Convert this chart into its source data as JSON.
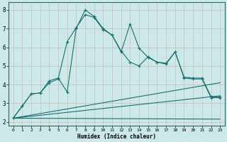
{
  "title": "",
  "xlabel": "Humidex (Indice chaleur)",
  "background_color": "#cce8e8",
  "grid_color": "#b0cccc",
  "line_color": "#1a7070",
  "xlim": [
    -0.5,
    23.5
  ],
  "ylim": [
    1.8,
    8.4
  ],
  "xticks": [
    0,
    1,
    2,
    3,
    4,
    5,
    6,
    7,
    8,
    9,
    10,
    11,
    12,
    13,
    14,
    15,
    16,
    17,
    18,
    19,
    20,
    21,
    22,
    23
  ],
  "yticks": [
    2,
    3,
    4,
    5,
    6,
    7,
    8
  ],
  "line1_x": [
    0,
    1,
    2,
    3,
    4,
    5,
    6,
    7,
    8,
    9,
    10,
    11,
    12,
    13,
    14,
    15,
    16,
    17,
    18,
    19,
    20,
    21,
    22,
    23
  ],
  "line1_y": [
    2.2,
    2.85,
    3.5,
    3.55,
    4.2,
    4.35,
    3.6,
    7.0,
    8.0,
    7.65,
    7.0,
    6.65,
    5.8,
    5.2,
    5.0,
    5.5,
    5.2,
    5.15,
    5.75,
    4.4,
    4.35,
    4.35,
    3.35,
    3.35
  ],
  "line2_x": [
    0,
    1,
    2,
    3,
    4,
    5,
    6,
    7,
    8,
    9,
    10,
    11,
    12,
    13,
    14,
    15,
    16,
    17,
    18,
    19,
    20,
    21,
    22,
    23
  ],
  "line2_y": [
    2.2,
    2.85,
    3.5,
    3.55,
    4.1,
    4.3,
    6.3,
    7.05,
    7.75,
    7.6,
    6.95,
    6.65,
    5.75,
    7.25,
    5.95,
    5.45,
    5.2,
    5.1,
    5.75,
    4.35,
    4.3,
    4.3,
    3.3,
    3.3
  ],
  "line3_x": [
    0,
    23
  ],
  "line3_y": [
    2.2,
    4.1
  ],
  "line4_x": [
    0,
    23
  ],
  "line4_y": [
    2.2,
    3.4
  ],
  "line5_x": [
    0,
    23
  ],
  "line5_y": [
    2.2,
    2.15
  ]
}
